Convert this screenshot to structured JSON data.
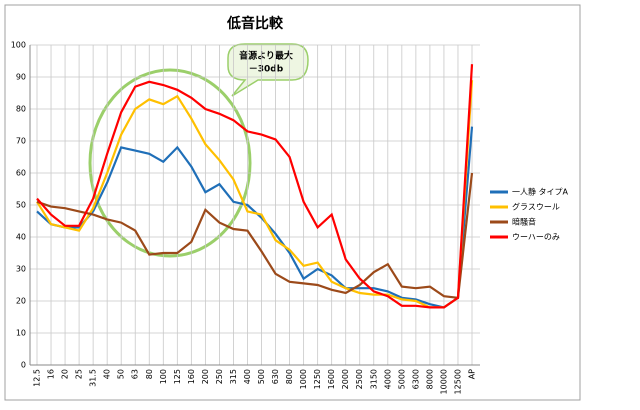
{
  "chart_data": {
    "type": "line",
    "title": "低音比較",
    "annotation": [
      "音源より最大",
      "－30db"
    ],
    "categories": [
      "12.5",
      "16",
      "20",
      "25",
      "31.5",
      "40",
      "50",
      "63",
      "80",
      "100",
      "125",
      "160",
      "200",
      "250",
      "315",
      "400",
      "500",
      "630",
      "800",
      "1000",
      "1250",
      "1600",
      "2000",
      "2500",
      "3150",
      "4000",
      "5000",
      "6300",
      "8000",
      "10000",
      "12500",
      "AP"
    ],
    "ylim": [
      0,
      100
    ],
    "yticks": [
      0,
      10,
      20,
      30,
      40,
      50,
      60,
      70,
      80,
      90,
      100
    ],
    "grid": true,
    "legend": "right",
    "series": [
      {
        "name": "一人静 タイプA",
        "color": "#1f6fb8",
        "values": [
          48,
          44,
          43,
          43,
          48,
          57,
          68,
          67,
          66,
          63.5,
          68,
          62,
          54,
          56.5,
          51,
          50,
          46,
          41,
          35,
          27,
          30,
          28,
          24,
          24,
          24,
          23,
          21,
          20.5,
          19,
          18,
          21,
          74.5
        ]
      },
      {
        "name": "グラスウール",
        "color": "#ffc000",
        "values": [
          51,
          44,
          43,
          42,
          49,
          60,
          72,
          80,
          83,
          81.5,
          84,
          77,
          69,
          64,
          58,
          48,
          47,
          39,
          36,
          31,
          32,
          26,
          24,
          22.5,
          22,
          22,
          20.5,
          20,
          18,
          18,
          21,
          89
        ]
      },
      {
        "name": "暗騒音",
        "color": "#9c4a1a",
        "values": [
          51,
          49.5,
          49,
          48,
          47,
          45.5,
          44.5,
          42,
          34.5,
          35,
          35,
          38.5,
          48.5,
          44.5,
          42.5,
          42,
          35.5,
          28.5,
          26,
          25.5,
          25,
          23.5,
          22.5,
          25,
          29,
          31.5,
          24.5,
          24,
          24.5,
          21.5,
          21,
          60
        ]
      },
      {
        "name": "ウーハーのみ",
        "color": "#ff0000",
        "values": [
          52,
          47,
          43.5,
          43.5,
          52,
          66,
          79,
          87,
          88.5,
          87.5,
          86,
          83.5,
          80,
          78.5,
          76.5,
          73,
          72,
          70.5,
          65,
          51,
          43,
          47,
          33,
          27,
          23,
          21.5,
          18.5,
          18.5,
          18,
          18,
          21,
          94
        ]
      }
    ]
  }
}
